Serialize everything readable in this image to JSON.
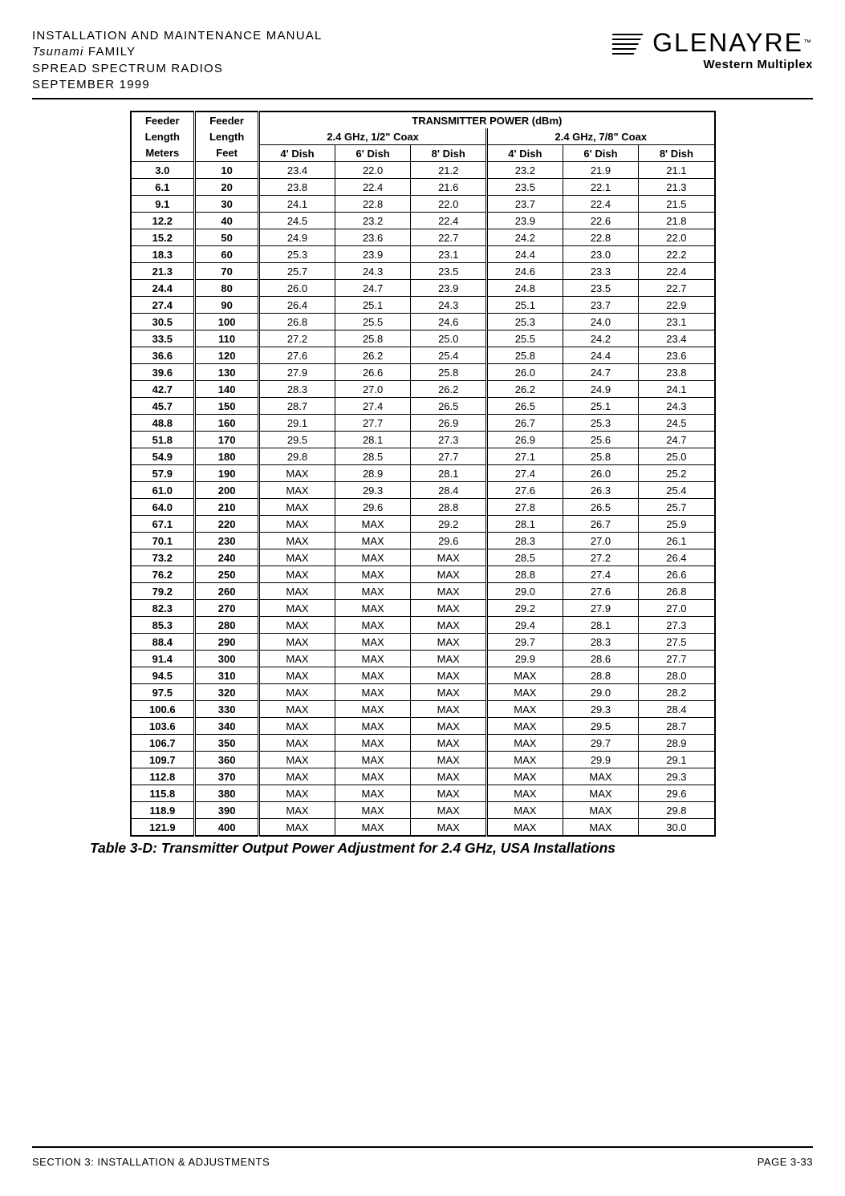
{
  "header": {
    "line1": "INSTALLATION AND MAINTENANCE MANUAL",
    "line2_italic": "Tsunami",
    "line2_rest": " FAMILY",
    "line3": "SPREAD SPECTRUM RADIOS",
    "line4": "SEPTEMBER 1999",
    "logo_main": "GLENAYRE",
    "logo_tm": "™",
    "logo_sub": "Western Multiplex"
  },
  "table": {
    "type": "table",
    "header": {
      "feeder_meters_1": "Feeder",
      "feeder_meters_2": "Length",
      "feeder_meters_3": "Meters",
      "feeder_feet_1": "Feeder",
      "feeder_feet_2": "Length",
      "feeder_feet_3": "Feet",
      "tx_power": "TRANSMITTER POWER (dBm)",
      "coax_half": "2.4 GHz, 1/2\" Coax",
      "coax_78": "2.4 GHz, 7/8\" Coax",
      "dish4": "4' Dish",
      "dish6": "6' Dish",
      "dish8": "8' Dish"
    },
    "rows": [
      [
        "3.0",
        "10",
        "23.4",
        "22.0",
        "21.2",
        "23.2",
        "21.9",
        "21.1"
      ],
      [
        "6.1",
        "20",
        "23.8",
        "22.4",
        "21.6",
        "23.5",
        "22.1",
        "21.3"
      ],
      [
        "9.1",
        "30",
        "24.1",
        "22.8",
        "22.0",
        "23.7",
        "22.4",
        "21.5"
      ],
      [
        "12.2",
        "40",
        "24.5",
        "23.2",
        "22.4",
        "23.9",
        "22.6",
        "21.8"
      ],
      [
        "15.2",
        "50",
        "24.9",
        "23.6",
        "22.7",
        "24.2",
        "22.8",
        "22.0"
      ],
      [
        "18.3",
        "60",
        "25.3",
        "23.9",
        "23.1",
        "24.4",
        "23.0",
        "22.2"
      ],
      [
        "21.3",
        "70",
        "25.7",
        "24.3",
        "23.5",
        "24.6",
        "23.3",
        "22.4"
      ],
      [
        "24.4",
        "80",
        "26.0",
        "24.7",
        "23.9",
        "24.8",
        "23.5",
        "22.7"
      ],
      [
        "27.4",
        "90",
        "26.4",
        "25.1",
        "24.3",
        "25.1",
        "23.7",
        "22.9"
      ],
      [
        "30.5",
        "100",
        "26.8",
        "25.5",
        "24.6",
        "25.3",
        "24.0",
        "23.1"
      ],
      [
        "33.5",
        "110",
        "27.2",
        "25.8",
        "25.0",
        "25.5",
        "24.2",
        "23.4"
      ],
      [
        "36.6",
        "120",
        "27.6",
        "26.2",
        "25.4",
        "25.8",
        "24.4",
        "23.6"
      ],
      [
        "39.6",
        "130",
        "27.9",
        "26.6",
        "25.8",
        "26.0",
        "24.7",
        "23.8"
      ],
      [
        "42.7",
        "140",
        "28.3",
        "27.0",
        "26.2",
        "26.2",
        "24.9",
        "24.1"
      ],
      [
        "45.7",
        "150",
        "28.7",
        "27.4",
        "26.5",
        "26.5",
        "25.1",
        "24.3"
      ],
      [
        "48.8",
        "160",
        "29.1",
        "27.7",
        "26.9",
        "26.7",
        "25.3",
        "24.5"
      ],
      [
        "51.8",
        "170",
        "29.5",
        "28.1",
        "27.3",
        "26.9",
        "25.6",
        "24.7"
      ],
      [
        "54.9",
        "180",
        "29.8",
        "28.5",
        "27.7",
        "27.1",
        "25.8",
        "25.0"
      ],
      [
        "57.9",
        "190",
        "MAX",
        "28.9",
        "28.1",
        "27.4",
        "26.0",
        "25.2"
      ],
      [
        "61.0",
        "200",
        "MAX",
        "29.3",
        "28.4",
        "27.6",
        "26.3",
        "25.4"
      ],
      [
        "64.0",
        "210",
        "MAX",
        "29.6",
        "28.8",
        "27.8",
        "26.5",
        "25.7"
      ],
      [
        "67.1",
        "220",
        "MAX",
        "MAX",
        "29.2",
        "28.1",
        "26.7",
        "25.9"
      ],
      [
        "70.1",
        "230",
        "MAX",
        "MAX",
        "29.6",
        "28.3",
        "27.0",
        "26.1"
      ],
      [
        "73.2",
        "240",
        "MAX",
        "MAX",
        "MAX",
        "28.5",
        "27.2",
        "26.4"
      ],
      [
        "76.2",
        "250",
        "MAX",
        "MAX",
        "MAX",
        "28.8",
        "27.4",
        "26.6"
      ],
      [
        "79.2",
        "260",
        "MAX",
        "MAX",
        "MAX",
        "29.0",
        "27.6",
        "26.8"
      ],
      [
        "82.3",
        "270",
        "MAX",
        "MAX",
        "MAX",
        "29.2",
        "27.9",
        "27.0"
      ],
      [
        "85.3",
        "280",
        "MAX",
        "MAX",
        "MAX",
        "29.4",
        "28.1",
        "27.3"
      ],
      [
        "88.4",
        "290",
        "MAX",
        "MAX",
        "MAX",
        "29.7",
        "28.3",
        "27.5"
      ],
      [
        "91.4",
        "300",
        "MAX",
        "MAX",
        "MAX",
        "29.9",
        "28.6",
        "27.7"
      ],
      [
        "94.5",
        "310",
        "MAX",
        "MAX",
        "MAX",
        "MAX",
        "28.8",
        "28.0"
      ],
      [
        "97.5",
        "320",
        "MAX",
        "MAX",
        "MAX",
        "MAX",
        "29.0",
        "28.2"
      ],
      [
        "100.6",
        "330",
        "MAX",
        "MAX",
        "MAX",
        "MAX",
        "29.3",
        "28.4"
      ],
      [
        "103.6",
        "340",
        "MAX",
        "MAX",
        "MAX",
        "MAX",
        "29.5",
        "28.7"
      ],
      [
        "106.7",
        "350",
        "MAX",
        "MAX",
        "MAX",
        "MAX",
        "29.7",
        "28.9"
      ],
      [
        "109.7",
        "360",
        "MAX",
        "MAX",
        "MAX",
        "MAX",
        "29.9",
        "29.1"
      ],
      [
        "112.8",
        "370",
        "MAX",
        "MAX",
        "MAX",
        "MAX",
        "MAX",
        "29.3"
      ],
      [
        "115.8",
        "380",
        "MAX",
        "MAX",
        "MAX",
        "MAX",
        "MAX",
        "29.6"
      ],
      [
        "118.9",
        "390",
        "MAX",
        "MAX",
        "MAX",
        "MAX",
        "MAX",
        "29.8"
      ],
      [
        "121.9",
        "400",
        "MAX",
        "MAX",
        "MAX",
        "MAX",
        "MAX",
        "30.0"
      ]
    ]
  },
  "caption": "Table 3-D: Transmitter Output Power Adjustment for 2.4 GHz, USA Installations",
  "footer": {
    "left": "SECTION 3: INSTALLATION & ADJUSTMENTS",
    "right": "PAGE 3-33"
  },
  "style": {
    "background_color": "#ffffff",
    "text_color": "#000000",
    "rule_color": "#000000",
    "header_fontsize": 15,
    "table_fontsize": 13,
    "caption_fontsize": 17.5,
    "footer_fontsize": 13
  }
}
